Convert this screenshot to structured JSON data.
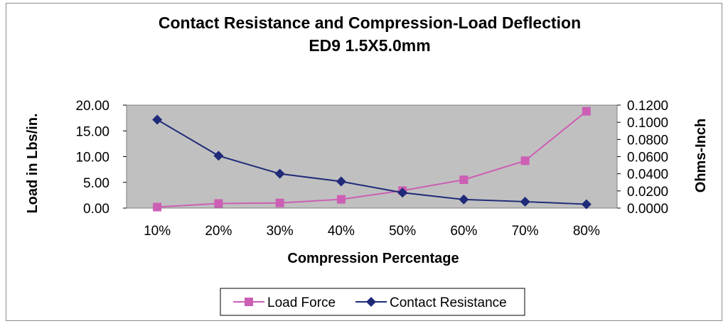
{
  "chart_data": {
    "type": "line",
    "title": "Contact Resistance and Compression-Load Deflection",
    "subtitle": "ED9 1.5X5.0mm",
    "xlabel": "Compression Percentage",
    "ylabel": "Load in Lbs/in.",
    "y2label": "Ohms-Inch",
    "categories": [
      "10%",
      "20%",
      "30%",
      "40%",
      "50%",
      "60%",
      "70%",
      "80%"
    ],
    "ylim": [
      0,
      20
    ],
    "y2lim": [
      0,
      0.12
    ],
    "yticks": [
      "0.00",
      "5.00",
      "10.00",
      "15.00",
      "20.00"
    ],
    "y2ticks": [
      "0.0000",
      "0.0200",
      "0.0400",
      "0.0600",
      "0.0800",
      "0.1000",
      "0.1200"
    ],
    "grid": false,
    "legend_position": "bottom",
    "series": [
      {
        "name": "Load Force",
        "axis": "left",
        "color": "#cc5fb4",
        "marker": "square",
        "values": [
          0.2,
          0.9,
          1.0,
          1.7,
          3.4,
          5.5,
          9.2,
          18.8
        ]
      },
      {
        "name": "Contact Resistance",
        "axis": "right",
        "color": "#1f2a78",
        "marker": "diamond",
        "values": [
          0.103,
          0.061,
          0.04,
          0.031,
          0.018,
          0.01,
          0.0075,
          0.0045
        ]
      }
    ],
    "plot_background": "#c0c0c0"
  }
}
